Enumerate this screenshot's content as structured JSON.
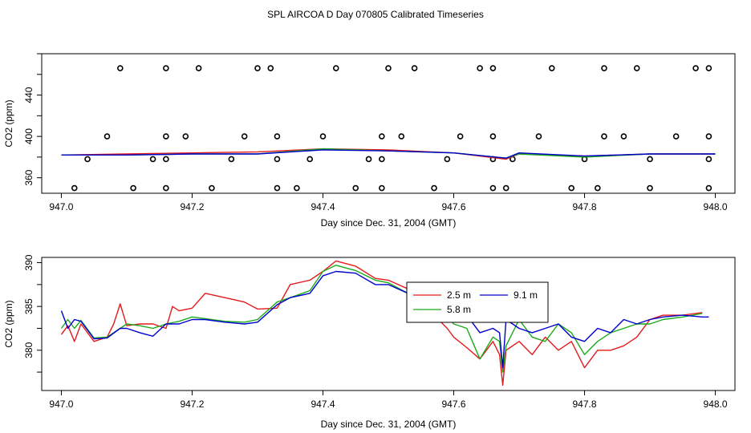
{
  "figure_title": "SPL AIRCOA D  Day 070805  Calibrated Timeseries",
  "chart_data": [
    {
      "type": "scatter",
      "title": "",
      "xlabel": "Day since Dec. 31, 2004 (GMT)",
      "ylabel": "CO2 (ppm)",
      "xlim": [
        946.97,
        948.03
      ],
      "ylim": [
        345,
        480
      ],
      "xticks": [
        "947.0",
        "947.2",
        "947.4",
        "947.6",
        "947.8",
        "948.0"
      ],
      "xtick_values": [
        947.0,
        947.2,
        947.4,
        947.6,
        947.8,
        948.0
      ],
      "yticks": [
        "360",
        "400",
        "440"
      ],
      "ytick_values": [
        360,
        400,
        440
      ],
      "grid": false,
      "legend": "none",
      "points": {
        "x": [
          947.09,
          947.16,
          947.21,
          947.3,
          947.32,
          947.42,
          947.5,
          947.54,
          947.64,
          947.66,
          947.75,
          947.83,
          947.88,
          947.97,
          947.99,
          947.07,
          947.16,
          947.19,
          947.28,
          947.33,
          947.4,
          947.49,
          947.52,
          947.61,
          947.66,
          947.73,
          947.83,
          947.86,
          947.94,
          947.99,
          947.04,
          947.14,
          947.16,
          947.26,
          947.33,
          947.38,
          947.47,
          947.49,
          947.59,
          947.66,
          947.69,
          947.8,
          947.9,
          947.99,
          947.02,
          947.11,
          947.16,
          947.23,
          947.33,
          947.36,
          947.45,
          947.49,
          947.57,
          947.66,
          947.68,
          947.78,
          947.82,
          947.9,
          947.99
        ],
        "y": [
          466,
          466,
          466,
          466,
          466,
          466,
          466,
          466,
          466,
          466,
          466,
          466,
          466,
          466,
          466,
          400,
          400,
          400,
          400,
          400,
          400,
          400,
          400,
          400,
          400,
          400,
          400,
          400,
          400,
          400,
          378,
          378,
          378,
          378,
          378,
          378,
          378,
          378,
          378,
          378,
          378,
          378,
          378,
          378,
          350,
          350,
          350,
          350,
          350,
          350,
          350,
          350,
          350,
          350,
          350,
          350,
          350,
          350,
          350
        ]
      },
      "series": [
        {
          "name": "2.5 m",
          "color": "#e41a1c",
          "x": [
            947.0,
            947.1,
            947.2,
            947.3,
            947.4,
            947.5,
            947.6,
            947.68,
            947.7,
            947.8,
            947.9,
            948.0
          ],
          "values": [
            382,
            383,
            384,
            385,
            388,
            387,
            384,
            378,
            383,
            381,
            383,
            383
          ]
        },
        {
          "name": "5.8 m",
          "color": "#1aab1a",
          "x": [
            947.0,
            947.1,
            947.2,
            947.3,
            947.4,
            947.5,
            947.6,
            947.68,
            947.7,
            947.8,
            947.9,
            948.0
          ],
          "values": [
            382,
            382,
            383,
            383,
            388,
            386,
            384,
            379,
            383,
            380,
            383,
            383
          ]
        },
        {
          "name": "9.1 m",
          "color": "#0000cc",
          "x": [
            947.0,
            947.1,
            947.2,
            947.3,
            947.4,
            947.5,
            947.6,
            947.68,
            947.7,
            947.8,
            947.9,
            948.0
          ],
          "values": [
            382,
            382,
            383,
            383,
            387,
            386,
            384,
            379,
            384,
            381,
            383,
            383
          ]
        }
      ]
    },
    {
      "type": "line",
      "title": "",
      "xlabel": "Day since Dec. 31, 2004 (GMT)",
      "ylabel": "CO2 (ppm)",
      "xlim": [
        946.97,
        948.03
      ],
      "ylim": [
        375.4,
        390.6
      ],
      "xticks": [
        "947.0",
        "947.2",
        "947.4",
        "947.6",
        "947.8",
        "948.0"
      ],
      "xtick_values": [
        947.0,
        947.2,
        947.4,
        947.6,
        947.8,
        948.0
      ],
      "yticks": [
        "380",
        "385",
        "390"
      ],
      "ytick_values": [
        380,
        385,
        390
      ],
      "grid": false,
      "legend": "top-center",
      "legend_labels": [
        "2.5 m",
        "9.1 m",
        "5.8 m"
      ],
      "series": [
        {
          "name": "2.5 m",
          "color": "#e41a1c",
          "x": [
            947.0,
            947.01,
            947.02,
            947.03,
            947.05,
            947.07,
            947.08,
            947.09,
            947.1,
            947.12,
            947.14,
            947.16,
            947.17,
            947.18,
            947.2,
            947.22,
            947.25,
            947.28,
            947.3,
            947.33,
            947.35,
            947.38,
            947.4,
            947.42,
            947.45,
            947.48,
            947.5,
            947.53,
            947.55,
            947.57,
            947.59,
            947.6,
            947.62,
            947.64,
            947.66,
            947.67,
            947.675,
            947.68,
            947.7,
            947.72,
            947.74,
            947.76,
            947.78,
            947.8,
            947.82,
            947.84,
            947.86,
            947.88,
            947.9,
            947.92,
            947.95,
            947.98
          ],
          "values": [
            381.8,
            382.8,
            381.0,
            383.0,
            381.0,
            381.5,
            383.0,
            385.3,
            382.8,
            383.0,
            383.0,
            382.5,
            385.0,
            384.5,
            384.8,
            386.5,
            386.0,
            385.5,
            384.7,
            384.8,
            387.5,
            388.0,
            389.0,
            390.2,
            389.6,
            388.2,
            388.0,
            387.0,
            384.6,
            384.0,
            382.5,
            381.5,
            380.3,
            379.0,
            381.0,
            379.5,
            376.0,
            380.0,
            381.0,
            379.5,
            381.5,
            380.0,
            381.0,
            378.0,
            380.0,
            380.0,
            380.5,
            381.5,
            383.5,
            384.0,
            384.0,
            384.3
          ]
        },
        {
          "name": "5.8 m",
          "color": "#1aab1a",
          "x": [
            947.0,
            947.01,
            947.02,
            947.03,
            947.05,
            947.07,
            947.09,
            947.1,
            947.12,
            947.14,
            947.16,
            947.18,
            947.2,
            947.22,
            947.25,
            947.28,
            947.3,
            947.33,
            947.35,
            947.38,
            947.4,
            947.42,
            947.45,
            947.48,
            947.5,
            947.53,
            947.55,
            947.57,
            947.59,
            947.6,
            947.62,
            947.64,
            947.66,
            947.67,
            947.675,
            947.68,
            947.7,
            947.72,
            947.74,
            947.76,
            947.78,
            947.8,
            947.82,
            947.84,
            947.86,
            947.88,
            947.9,
            947.92,
            947.95,
            947.98
          ],
          "values": [
            382.5,
            383.5,
            382.5,
            383.4,
            381.4,
            381.5,
            382.5,
            383.0,
            382.8,
            382.5,
            383.0,
            383.3,
            383.8,
            383.6,
            383.3,
            383.2,
            383.5,
            385.5,
            386.0,
            386.8,
            389.0,
            389.7,
            389.1,
            388.0,
            387.7,
            386.5,
            385.6,
            385.0,
            383.8,
            383.0,
            382.5,
            379.0,
            381.5,
            381.0,
            377.5,
            380.5,
            383.5,
            381.5,
            381.0,
            383.0,
            382.0,
            379.5,
            381.0,
            382.0,
            382.5,
            383.0,
            383.0,
            383.5,
            383.8,
            384.2
          ]
        },
        {
          "name": "9.1 m",
          "color": "#0000cc",
          "x": [
            947.0,
            947.01,
            947.02,
            947.03,
            947.05,
            947.07,
            947.09,
            947.1,
            947.12,
            947.14,
            947.16,
            947.18,
            947.2,
            947.22,
            947.25,
            947.28,
            947.3,
            947.33,
            947.35,
            947.38,
            947.4,
            947.42,
            947.45,
            947.48,
            947.5,
            947.53,
            947.55,
            947.57,
            947.59,
            947.6,
            947.62,
            947.64,
            947.66,
            947.67,
            947.675,
            947.68,
            947.7,
            947.72,
            947.74,
            947.76,
            947.78,
            947.8,
            947.82,
            947.84,
            947.86,
            947.88,
            947.9,
            947.92,
            947.95,
            947.98,
            947.99
          ],
          "values": [
            384.5,
            382.5,
            383.5,
            383.3,
            381.3,
            381.4,
            382.5,
            382.5,
            382.0,
            381.6,
            383.0,
            383.0,
            383.5,
            383.5,
            383.2,
            383.0,
            383.2,
            385.2,
            386.0,
            386.5,
            388.5,
            389.0,
            388.8,
            387.5,
            387.5,
            386.5,
            385.7,
            386.0,
            384.0,
            383.5,
            384.0,
            382.0,
            382.5,
            382.0,
            378.0,
            383.5,
            382.5,
            382.0,
            382.5,
            383.0,
            381.5,
            381.0,
            382.5,
            382.0,
            383.5,
            383.0,
            383.5,
            383.8,
            384.0,
            383.8,
            383.8
          ]
        }
      ]
    }
  ]
}
